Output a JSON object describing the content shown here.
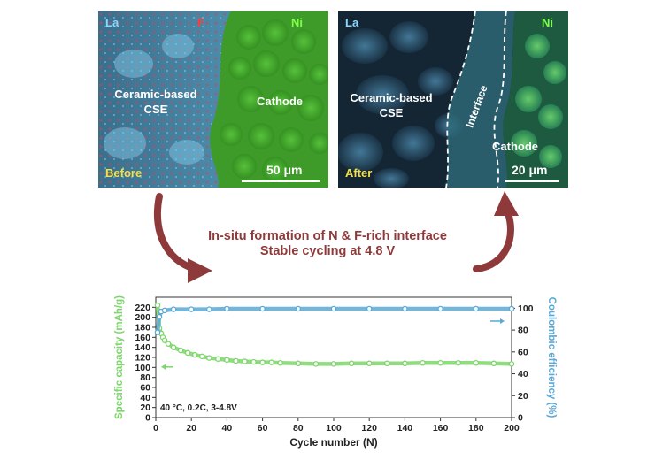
{
  "panels": {
    "before": {
      "elements": [
        {
          "text": "La",
          "color": "#8ad8ff"
        },
        {
          "text": "F",
          "color": "#ff3b3b"
        },
        {
          "text": "Ni",
          "color": "#7dff4a"
        }
      ],
      "region_left": [
        "Ceramic-based",
        "CSE"
      ],
      "region_right": "Cathode",
      "stage": "Before",
      "scale": "50 μm"
    },
    "after": {
      "elements": [
        {
          "text": "La",
          "color": "#8ad8ff"
        },
        {
          "text": "Ni",
          "color": "#7dff4a"
        }
      ],
      "region_left": [
        "Ceramic-based",
        "CSE"
      ],
      "interface": "Interface",
      "region_right": "Cathode",
      "stage": "After",
      "scale": "20 μm"
    }
  },
  "caption": {
    "line1": "In-situ formation of N & F-rich interface",
    "line2": "Stable cycling at 4.8 V"
  },
  "colors": {
    "arrow": "#8e3a3a",
    "capacity": "#7cd66a",
    "efficiency": "#5aa9d6",
    "caption": "#8e3a3a"
  },
  "chart_data": {
    "type": "scatter",
    "xlabel": "Cycle number (N)",
    "ylabel_left": "Specific capacity (mAh/g)",
    "ylabel_right": "Coulombic efficiency (%)",
    "xlim": [
      0,
      200
    ],
    "ylim_left": [
      0,
      240
    ],
    "ylim_right": [
      0,
      110
    ],
    "xticks": [
      0,
      20,
      40,
      60,
      80,
      100,
      120,
      140,
      160,
      180,
      200
    ],
    "yticks_left": [
      0,
      20,
      40,
      60,
      80,
      100,
      120,
      140,
      160,
      180,
      200,
      220
    ],
    "yticks_right": [
      0,
      20,
      40,
      60,
      80,
      100
    ],
    "annotation": "40 °C, 0.2C, 3-4.8V",
    "series": [
      {
        "axis": "left",
        "color": "#7cd66a",
        "x": [
          1,
          2,
          3,
          4,
          5,
          7,
          10,
          14,
          18,
          22,
          26,
          30,
          35,
          40,
          45,
          50,
          55,
          60,
          65,
          70,
          80,
          90,
          100,
          110,
          120,
          130,
          140,
          150,
          160,
          170,
          180,
          190,
          200
        ],
        "values": [
          224,
          178,
          168,
          160,
          154,
          147,
          140,
          134,
          129,
          125,
          122,
          119,
          117,
          115,
          113,
          112,
          111,
          110,
          110,
          109,
          108,
          107,
          107,
          108,
          108,
          108,
          108,
          109,
          109,
          109,
          109,
          108,
          107
        ]
      },
      {
        "axis": "right",
        "color": "#5aa9d6",
        "x": [
          1,
          2,
          3,
          5,
          10,
          20,
          30,
          40,
          60,
          80,
          100,
          120,
          140,
          160,
          180,
          200
        ],
        "values": [
          78,
          92,
          97,
          98,
          99,
          99,
          99,
          99.5,
          99.5,
          99.5,
          99.5,
          99.5,
          99.5,
          99.5,
          99.5,
          99.5
        ]
      }
    ]
  }
}
